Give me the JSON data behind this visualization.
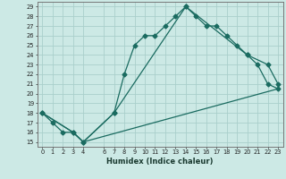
{
  "xlabel": "Humidex (Indice chaleur)",
  "bg_color": "#cce9e5",
  "grid_color": "#aacfcb",
  "line_color": "#1a6b60",
  "xlim": [
    -0.5,
    23.5
  ],
  "ylim": [
    14.5,
    29.5
  ],
  "xticks": [
    0,
    1,
    2,
    3,
    4,
    6,
    7,
    8,
    9,
    10,
    11,
    12,
    13,
    14,
    15,
    16,
    17,
    18,
    19,
    20,
    21,
    22,
    23
  ],
  "xtick_labels": [
    "0",
    "1",
    "2",
    "3",
    "4",
    "6",
    "7",
    "8",
    "9",
    "10",
    "11",
    "12",
    "13",
    "14",
    "15",
    "16",
    "17",
    "18",
    "19",
    "20",
    "21",
    "22",
    "23"
  ],
  "yticks": [
    15,
    16,
    17,
    18,
    19,
    20,
    21,
    22,
    23,
    24,
    25,
    26,
    27,
    28,
    29
  ],
  "line1_x": [
    0,
    1,
    2,
    3,
    4,
    7,
    8,
    9,
    10,
    11,
    12,
    13,
    14,
    15,
    16,
    17,
    18,
    19,
    20,
    21,
    22,
    23
  ],
  "line1_y": [
    18,
    17,
    16,
    16,
    15,
    18,
    22,
    25,
    26,
    26,
    27,
    28,
    29,
    28,
    27,
    27,
    26,
    25,
    24,
    23,
    21,
    20.5
  ],
  "line2_x": [
    0,
    3,
    4,
    7,
    14,
    20,
    22,
    23
  ],
  "line2_y": [
    18,
    16,
    15,
    18,
    29,
    24,
    23,
    21
  ],
  "line3_x": [
    0,
    3,
    4,
    23
  ],
  "line3_y": [
    18,
    16,
    15,
    20.5
  ]
}
